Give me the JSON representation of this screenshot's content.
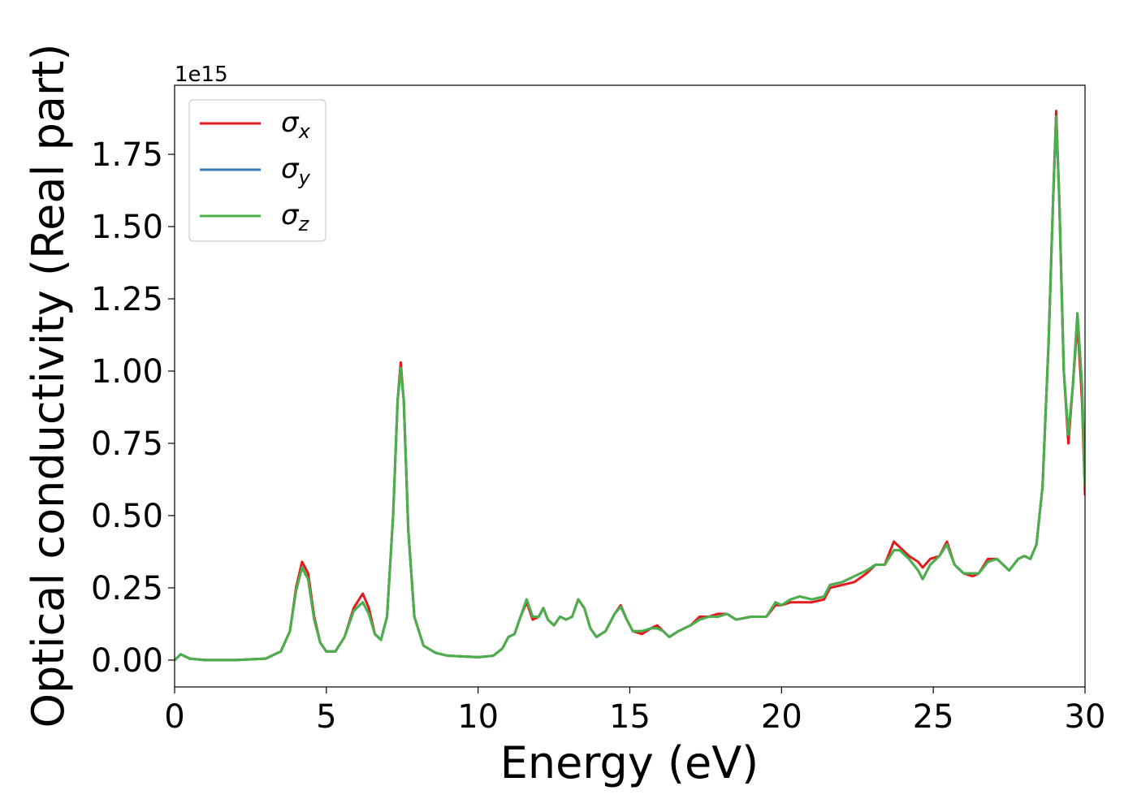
{
  "chart_data": {
    "type": "line",
    "offset_label": "1e15",
    "xlabel": "Energy (eV)",
    "ylabel": "Optical conductivity (Real part)",
    "xlim": [
      0,
      30
    ],
    "xticks": [
      0,
      5,
      10,
      15,
      20,
      25,
      30
    ],
    "ylim": [
      -0.093,
      1.989
    ],
    "yticks": [
      {
        "value": 0,
        "label": "0.00"
      },
      {
        "value": 0.25,
        "label": "0.25"
      },
      {
        "value": 0.5,
        "label": "0.50"
      },
      {
        "value": 0.75,
        "label": "0.75"
      },
      {
        "value": 1,
        "label": "1.00"
      },
      {
        "value": 1.25,
        "label": "1.25"
      },
      {
        "value": 1.5,
        "label": "1.50"
      },
      {
        "value": 1.75,
        "label": "1.75"
      }
    ],
    "legend": "upper left",
    "x": [
      0,
      0.2,
      0.5,
      1,
      2,
      3,
      3.5,
      3.8,
      4.0,
      4.2,
      4.4,
      4.6,
      4.8,
      5.0,
      5.3,
      5.6,
      5.9,
      6.2,
      6.4,
      6.6,
      6.8,
      7.0,
      7.2,
      7.35,
      7.45,
      7.55,
      7.7,
      7.9,
      8.2,
      8.6,
      9.0,
      10.0,
      10.5,
      10.8,
      11.0,
      11.2,
      11.4,
      11.6,
      11.8,
      12.0,
      12.15,
      12.3,
      12.5,
      12.7,
      12.9,
      13.1,
      13.3,
      13.5,
      13.7,
      13.9,
      14.2,
      14.5,
      14.7,
      14.9,
      15.1,
      15.4,
      15.7,
      15.9,
      16.1,
      16.3,
      16.6,
      17.0,
      17.3,
      17.6,
      17.9,
      18.2,
      18.5,
      19.0,
      19.5,
      19.8,
      20.0,
      20.3,
      20.6,
      21.0,
      21.4,
      21.6,
      22.0,
      22.4,
      22.8,
      23.1,
      23.4,
      23.7,
      23.9,
      24.2,
      24.5,
      24.65,
      24.9,
      25.2,
      25.45,
      25.7,
      26.0,
      26.3,
      26.5,
      26.8,
      27.1,
      27.5,
      27.8,
      28.0,
      28.2,
      28.4,
      28.6,
      28.8,
      28.95,
      29.05,
      29.15,
      29.3,
      29.45,
      29.6,
      29.75,
      29.9,
      30.0
    ],
    "series": [
      {
        "name": "σx",
        "color": "#e41a1c",
        "values": [
          0,
          0.02,
          0.005,
          0,
          0,
          0.005,
          0.03,
          0.1,
          0.25,
          0.34,
          0.3,
          0.15,
          0.06,
          0.03,
          0.03,
          0.08,
          0.18,
          0.23,
          0.18,
          0.09,
          0.07,
          0.15,
          0.5,
          0.9,
          1.03,
          0.9,
          0.45,
          0.15,
          0.05,
          0.025,
          0.015,
          0.01,
          0.015,
          0.04,
          0.08,
          0.09,
          0.15,
          0.2,
          0.14,
          0.15,
          0.18,
          0.14,
          0.12,
          0.15,
          0.14,
          0.15,
          0.21,
          0.18,
          0.11,
          0.08,
          0.1,
          0.16,
          0.19,
          0.14,
          0.1,
          0.09,
          0.11,
          0.12,
          0.1,
          0.08,
          0.1,
          0.12,
          0.15,
          0.15,
          0.16,
          0.16,
          0.14,
          0.15,
          0.15,
          0.19,
          0.19,
          0.2,
          0.2,
          0.2,
          0.21,
          0.25,
          0.26,
          0.27,
          0.3,
          0.33,
          0.33,
          0.41,
          0.39,
          0.36,
          0.34,
          0.32,
          0.35,
          0.36,
          0.41,
          0.33,
          0.3,
          0.29,
          0.3,
          0.35,
          0.35,
          0.31,
          0.35,
          0.36,
          0.35,
          0.4,
          0.6,
          1.1,
          1.6,
          1.9,
          1.6,
          1.0,
          0.75,
          0.95,
          1.17,
          0.9,
          0.57
        ]
      },
      {
        "name": "σy",
        "color": "#377eb8",
        "values": [
          0,
          0.02,
          0.005,
          0,
          0,
          0.005,
          0.03,
          0.1,
          0.24,
          0.32,
          0.28,
          0.14,
          0.06,
          0.03,
          0.03,
          0.08,
          0.17,
          0.2,
          0.16,
          0.09,
          0.07,
          0.15,
          0.5,
          0.9,
          1.01,
          0.9,
          0.45,
          0.15,
          0.05,
          0.025,
          0.015,
          0.01,
          0.015,
          0.04,
          0.08,
          0.09,
          0.15,
          0.21,
          0.15,
          0.15,
          0.18,
          0.14,
          0.12,
          0.15,
          0.14,
          0.15,
          0.21,
          0.18,
          0.11,
          0.08,
          0.1,
          0.16,
          0.185,
          0.14,
          0.1,
          0.1,
          0.11,
          0.11,
          0.1,
          0.08,
          0.1,
          0.12,
          0.14,
          0.15,
          0.15,
          0.16,
          0.14,
          0.15,
          0.15,
          0.2,
          0.19,
          0.21,
          0.22,
          0.21,
          0.22,
          0.26,
          0.27,
          0.29,
          0.31,
          0.33,
          0.33,
          0.38,
          0.38,
          0.35,
          0.31,
          0.28,
          0.33,
          0.36,
          0.4,
          0.33,
          0.3,
          0.3,
          0.3,
          0.34,
          0.35,
          0.31,
          0.35,
          0.36,
          0.35,
          0.4,
          0.6,
          1.1,
          1.6,
          1.88,
          1.6,
          1.0,
          0.78,
          0.95,
          1.2,
          0.95,
          0.6
        ]
      },
      {
        "name": "σz",
        "color": "#4daf4a",
        "values": [
          0,
          0.02,
          0.005,
          0,
          0,
          0.005,
          0.03,
          0.1,
          0.24,
          0.32,
          0.28,
          0.14,
          0.06,
          0.03,
          0.03,
          0.08,
          0.17,
          0.2,
          0.16,
          0.09,
          0.07,
          0.15,
          0.5,
          0.9,
          1.01,
          0.9,
          0.45,
          0.15,
          0.05,
          0.025,
          0.015,
          0.01,
          0.015,
          0.04,
          0.08,
          0.09,
          0.15,
          0.21,
          0.15,
          0.15,
          0.18,
          0.14,
          0.12,
          0.15,
          0.14,
          0.15,
          0.21,
          0.18,
          0.11,
          0.08,
          0.1,
          0.16,
          0.185,
          0.14,
          0.1,
          0.1,
          0.11,
          0.11,
          0.1,
          0.08,
          0.1,
          0.12,
          0.14,
          0.15,
          0.15,
          0.16,
          0.14,
          0.15,
          0.15,
          0.2,
          0.19,
          0.21,
          0.22,
          0.21,
          0.22,
          0.26,
          0.27,
          0.29,
          0.31,
          0.33,
          0.33,
          0.38,
          0.38,
          0.35,
          0.31,
          0.28,
          0.33,
          0.36,
          0.4,
          0.33,
          0.3,
          0.3,
          0.3,
          0.34,
          0.35,
          0.31,
          0.35,
          0.36,
          0.35,
          0.4,
          0.6,
          1.1,
          1.6,
          1.88,
          1.6,
          1.0,
          0.78,
          0.95,
          1.2,
          0.95,
          0.6
        ]
      }
    ]
  }
}
